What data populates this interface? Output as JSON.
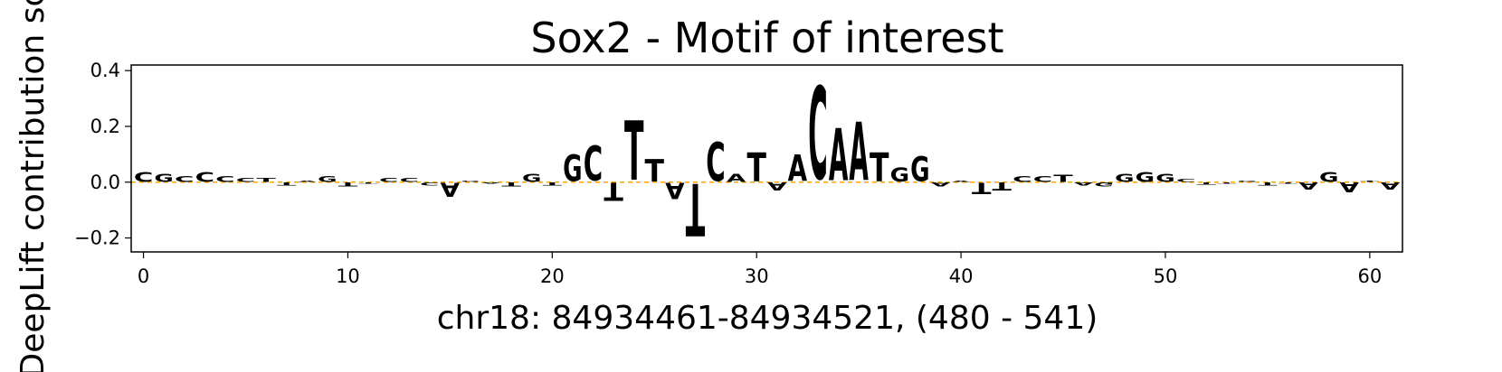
{
  "chart_data": {
    "type": "sequence-logo",
    "title": "Sox2 - Motif of interest",
    "xlabel": "chr18: 84934461-84934521, (480 - 541)",
    "ylabel": "DeepLift contribution score",
    "xlim": [
      -0.6,
      61.6
    ],
    "ylim": [
      -0.25,
      0.42
    ],
    "xticks": [
      "0",
      "10",
      "20",
      "30",
      "40",
      "50",
      "60"
    ],
    "yticks": [
      "−0.2",
      "0.0",
      "0.2",
      "0.4"
    ],
    "colors": {
      "A": "#008000",
      "C": "#0000ff",
      "G": "#ffa500",
      "T": "#ff0000"
    },
    "positions": [
      {
        "pos": 0,
        "base": "C",
        "value": 0.035
      },
      {
        "pos": 1,
        "base": "G",
        "value": 0.03
      },
      {
        "pos": 2,
        "base": "C",
        "value": 0.02
      },
      {
        "pos": 3,
        "base": "C",
        "value": 0.035
      },
      {
        "pos": 4,
        "base": "C",
        "value": 0.02
      },
      {
        "pos": 5,
        "base": "C",
        "value": 0.015
      },
      {
        "pos": 6,
        "base": "T",
        "value": 0.015
      },
      {
        "pos": 7,
        "base": "T",
        "value": -0.01
      },
      {
        "pos": 8,
        "base": "A",
        "value": 0.005
      },
      {
        "pos": 9,
        "base": "G",
        "value": 0.02
      },
      {
        "pos": 10,
        "base": "T",
        "value": -0.015
      },
      {
        "pos": 11,
        "base": "T",
        "value": -0.005
      },
      {
        "pos": 12,
        "base": "C",
        "value": 0.015
      },
      {
        "pos": 13,
        "base": "C",
        "value": 0.015
      },
      {
        "pos": 14,
        "base": "C",
        "value": -0.01
      },
      {
        "pos": 15,
        "base": "A",
        "value": -0.05
      },
      {
        "pos": 16,
        "base": "G",
        "value": 0.005
      },
      {
        "pos": 17,
        "base": "A",
        "value": -0.005
      },
      {
        "pos": 18,
        "base": "T",
        "value": -0.015
      },
      {
        "pos": 19,
        "base": "G",
        "value": 0.03
      },
      {
        "pos": 20,
        "base": "T",
        "value": -0.01
      },
      {
        "pos": 21,
        "base": "G",
        "value": 0.095
      },
      {
        "pos": 22,
        "base": "C",
        "value": 0.125
      },
      {
        "pos": 23,
        "base": "T",
        "value": -0.065
      },
      {
        "pos": 24,
        "base": "T",
        "value": 0.215
      },
      {
        "pos": 25,
        "base": "T",
        "value": 0.08
      },
      {
        "pos": 26,
        "base": "A",
        "value": -0.06
      },
      {
        "pos": 27,
        "base": "T",
        "value": -0.19
      },
      {
        "pos": 28,
        "base": "C",
        "value": 0.14
      },
      {
        "pos": 29,
        "base": "A",
        "value": 0.03
      },
      {
        "pos": 30,
        "base": "T",
        "value": 0.105
      },
      {
        "pos": 31,
        "base": "A",
        "value": -0.03
      },
      {
        "pos": 32,
        "base": "A",
        "value": 0.095
      },
      {
        "pos": 33,
        "base": "C",
        "value": 0.335
      },
      {
        "pos": 34,
        "base": "A",
        "value": 0.19
      },
      {
        "pos": 35,
        "base": "A",
        "value": 0.21
      },
      {
        "pos": 36,
        "base": "T",
        "value": 0.105
      },
      {
        "pos": 37,
        "base": "G",
        "value": 0.05
      },
      {
        "pos": 38,
        "base": "G",
        "value": 0.09
      },
      {
        "pos": 39,
        "base": "A",
        "value": -0.015
      },
      {
        "pos": 40,
        "base": "A",
        "value": 0.005
      },
      {
        "pos": 41,
        "base": "T",
        "value": -0.04
      },
      {
        "pos": 42,
        "base": "T",
        "value": -0.03
      },
      {
        "pos": 43,
        "base": "C",
        "value": 0.02
      },
      {
        "pos": 44,
        "base": "C",
        "value": 0.02
      },
      {
        "pos": 45,
        "base": "T",
        "value": 0.025
      },
      {
        "pos": 46,
        "base": "A",
        "value": -0.01
      },
      {
        "pos": 47,
        "base": "G",
        "value": -0.015
      },
      {
        "pos": 48,
        "base": "G",
        "value": 0.03
      },
      {
        "pos": 49,
        "base": "G",
        "value": 0.035
      },
      {
        "pos": 50,
        "base": "G",
        "value": 0.03
      },
      {
        "pos": 51,
        "base": "C",
        "value": 0.01
      },
      {
        "pos": 52,
        "base": "T",
        "value": -0.008
      },
      {
        "pos": 53,
        "base": "T",
        "value": -0.005
      },
      {
        "pos": 54,
        "base": "G",
        "value": 0.005
      },
      {
        "pos": 55,
        "base": "T",
        "value": -0.01
      },
      {
        "pos": 56,
        "base": "T",
        "value": -0.005
      },
      {
        "pos": 57,
        "base": "A",
        "value": -0.025
      },
      {
        "pos": 58,
        "base": "G",
        "value": 0.035
      },
      {
        "pos": 59,
        "base": "A",
        "value": -0.035
      },
      {
        "pos": 60,
        "base": "T",
        "value": 0.005
      },
      {
        "pos": 61,
        "base": "A",
        "value": -0.025
      }
    ]
  }
}
